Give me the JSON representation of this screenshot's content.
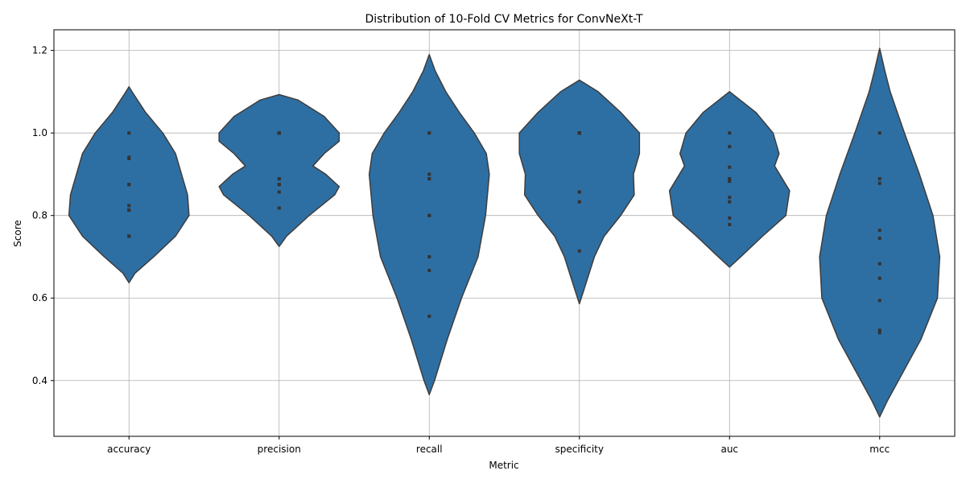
{
  "chart_data": {
    "type": "violin",
    "title": "Distribution of 10-Fold CV Metrics for ConvNeXt-T",
    "xlabel": "Metric",
    "ylabel": "Score",
    "ylim": [
      0.265,
      1.25
    ],
    "yticks": [
      0.4,
      0.6,
      0.8,
      1.0,
      1.2
    ],
    "ytick_labels": [
      "0.4",
      "0.6",
      "0.8",
      "1.0",
      "1.2"
    ],
    "grid": true,
    "color": "#2e6fa3",
    "edge_color": "#3d3d3d",
    "point_color": "#333333",
    "categories": [
      "accuracy",
      "precision",
      "recall",
      "specificity",
      "auc",
      "mcc"
    ],
    "series": [
      {
        "metric": "accuracy",
        "values": [
          1.0,
          0.941,
          0.938,
          0.875,
          0.824,
          0.813,
          0.75,
          0.875,
          0.813,
          0.75
        ]
      },
      {
        "metric": "precision",
        "values": [
          1.0,
          1.0,
          0.889,
          0.875,
          0.857,
          0.818,
          1.0,
          0.889,
          0.875,
          1.0
        ]
      },
      {
        "metric": "recall",
        "values": [
          1.0,
          0.9,
          0.889,
          0.8,
          0.7,
          0.667,
          0.556,
          1.0,
          0.889,
          0.8
        ]
      },
      {
        "metric": "specificity",
        "values": [
          1.0,
          1.0,
          1.0,
          0.857,
          0.833,
          0.714,
          1.0,
          0.857,
          1.0,
          1.0
        ]
      },
      {
        "metric": "auc",
        "values": [
          1.0,
          0.967,
          0.917,
          0.889,
          0.883,
          0.844,
          0.833,
          0.794,
          0.778,
          0.889
        ]
      },
      {
        "metric": "mcc",
        "values": [
          1.0,
          0.889,
          0.878,
          0.764,
          0.745,
          0.683,
          0.648,
          0.594,
          0.522,
          0.516
        ]
      }
    ],
    "violin_profiles": [
      {
        "metric": "accuracy",
        "y": [
          0.637,
          0.66,
          0.7,
          0.75,
          0.8,
          0.85,
          0.9,
          0.95,
          1.0,
          1.05,
          1.1,
          1.112
        ],
        "half_width": [
          0.0,
          0.08,
          0.33,
          0.62,
          0.8,
          0.78,
          0.7,
          0.62,
          0.45,
          0.22,
          0.04,
          0.0
        ]
      },
      {
        "metric": "precision",
        "y": [
          0.725,
          0.75,
          0.8,
          0.85,
          0.87,
          0.9,
          0.92,
          0.95,
          0.98,
          1.0,
          1.04,
          1.08,
          1.093
        ],
        "half_width": [
          0.0,
          0.1,
          0.4,
          0.74,
          0.8,
          0.62,
          0.45,
          0.6,
          0.8,
          0.8,
          0.6,
          0.25,
          0.0
        ]
      },
      {
        "metric": "recall",
        "y": [
          0.366,
          0.4,
          0.5,
          0.6,
          0.7,
          0.8,
          0.9,
          0.95,
          1.0,
          1.05,
          1.1,
          1.15,
          1.19
        ],
        "half_width": [
          0.0,
          0.07,
          0.24,
          0.43,
          0.65,
          0.75,
          0.8,
          0.76,
          0.6,
          0.4,
          0.22,
          0.08,
          0.0
        ]
      },
      {
        "metric": "specificity",
        "y": [
          0.586,
          0.62,
          0.7,
          0.75,
          0.8,
          0.85,
          0.9,
          0.95,
          1.0,
          1.05,
          1.1,
          1.128
        ],
        "half_width": [
          0.0,
          0.06,
          0.2,
          0.33,
          0.55,
          0.73,
          0.72,
          0.8,
          0.8,
          0.55,
          0.25,
          0.0
        ]
      },
      {
        "metric": "auc",
        "y": [
          0.675,
          0.7,
          0.75,
          0.8,
          0.86,
          0.92,
          0.95,
          1.0,
          1.05,
          1.1
        ],
        "half_width": [
          0.0,
          0.15,
          0.44,
          0.75,
          0.8,
          0.6,
          0.66,
          0.58,
          0.35,
          0.0
        ]
      },
      {
        "metric": "mcc",
        "y": [
          0.312,
          0.35,
          0.4,
          0.5,
          0.6,
          0.7,
          0.8,
          0.9,
          1.0,
          1.1,
          1.15,
          1.205
        ],
        "half_width": [
          0.0,
          0.1,
          0.25,
          0.55,
          0.77,
          0.8,
          0.71,
          0.53,
          0.33,
          0.14,
          0.07,
          0.0
        ]
      }
    ]
  }
}
